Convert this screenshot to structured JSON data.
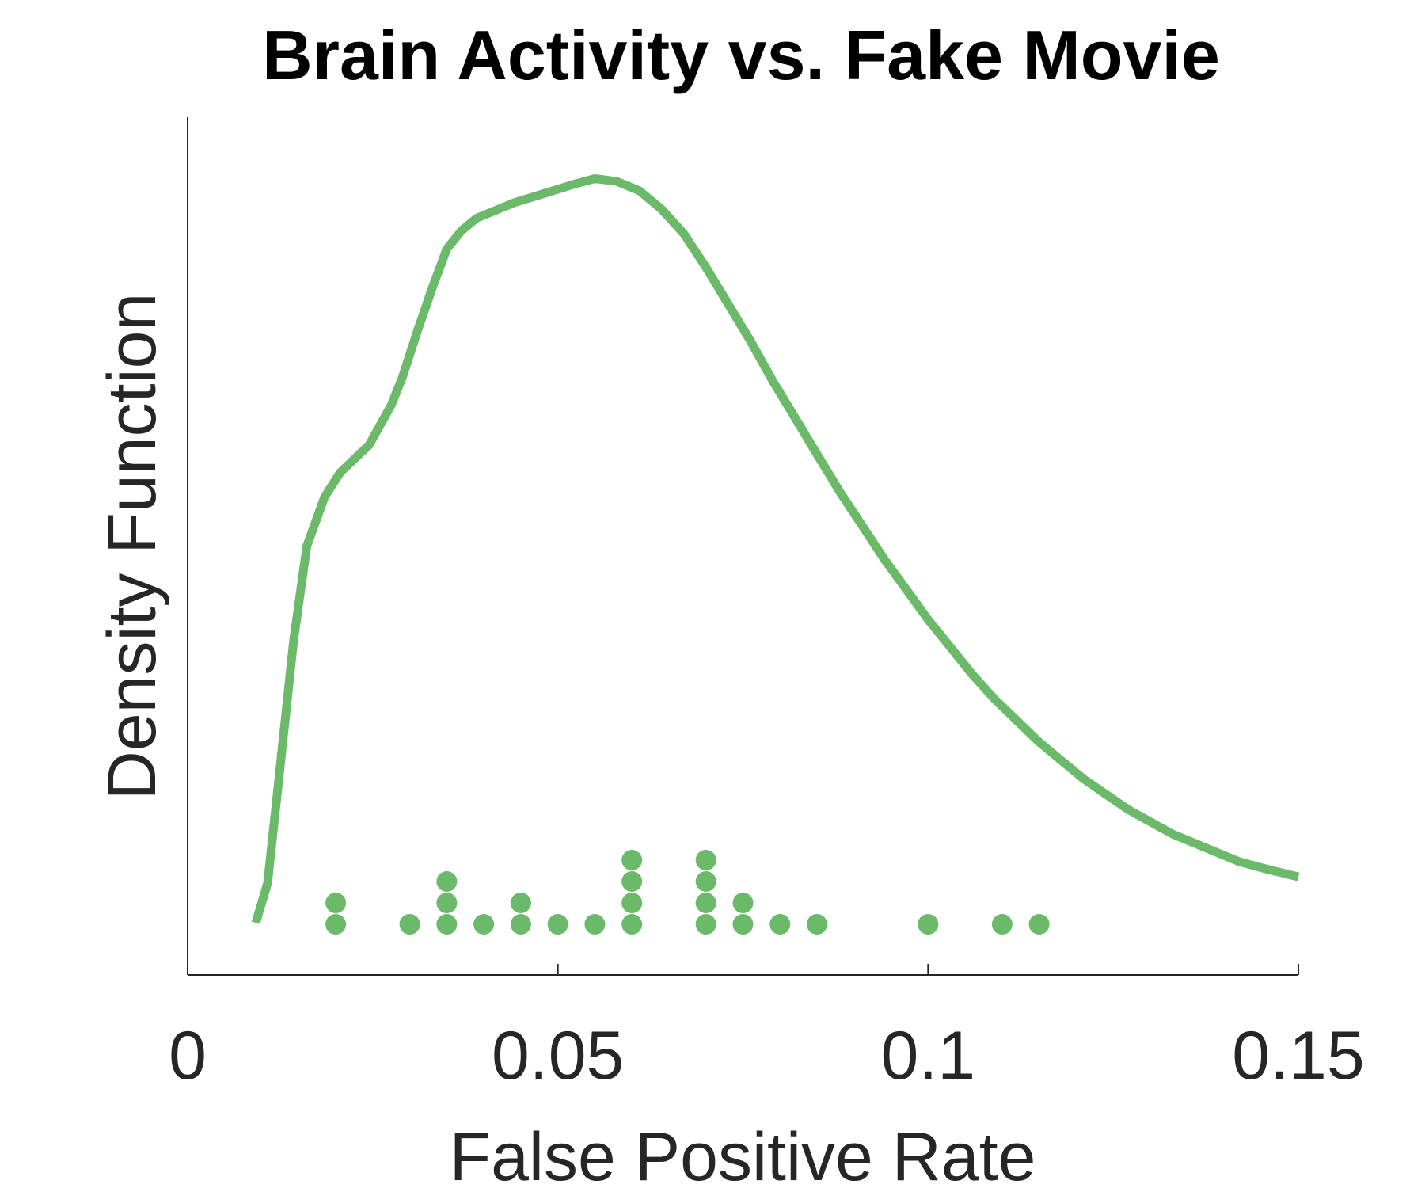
{
  "chart_data": {
    "type": "line",
    "title": "Brain Activity vs. Fake Movie",
    "xlabel": "False Positive Rate",
    "ylabel": "Density Function",
    "xlim": [
      0,
      0.15
    ],
    "ylim": [
      0,
      28
    ],
    "x_ticks": [
      0,
      0.05,
      0.1,
      0.15
    ],
    "x_tick_labels": [
      "0",
      "0.05",
      "0.1",
      "0.15"
    ],
    "y_ticks_visible": false,
    "grid": false,
    "color": "#6aba6a",
    "series": [
      {
        "kind": "density_curve",
        "points": [
          [
            0.0092,
            1.7
          ],
          [
            0.0108,
            3.0
          ],
          [
            0.0125,
            6.8
          ],
          [
            0.0143,
            10.9
          ],
          [
            0.0161,
            14.0
          ],
          [
            0.0185,
            15.6
          ],
          [
            0.0206,
            16.4
          ],
          [
            0.0245,
            17.3
          ],
          [
            0.0275,
            18.6
          ],
          [
            0.029,
            19.5
          ],
          [
            0.031,
            21.0
          ],
          [
            0.033,
            22.4
          ],
          [
            0.035,
            23.7
          ],
          [
            0.037,
            24.3
          ],
          [
            0.039,
            24.7
          ],
          [
            0.041,
            24.9
          ],
          [
            0.044,
            25.2
          ],
          [
            0.048,
            25.5
          ],
          [
            0.052,
            25.8
          ],
          [
            0.055,
            26.0
          ],
          [
            0.058,
            25.9
          ],
          [
            0.061,
            25.6
          ],
          [
            0.064,
            25.0
          ],
          [
            0.067,
            24.2
          ],
          [
            0.07,
            23.1
          ],
          [
            0.073,
            21.9
          ],
          [
            0.076,
            20.7
          ],
          [
            0.079,
            19.4
          ],
          [
            0.082,
            18.2
          ],
          [
            0.085,
            17.0
          ],
          [
            0.088,
            15.8
          ],
          [
            0.091,
            14.7
          ],
          [
            0.094,
            13.6
          ],
          [
            0.097,
            12.6
          ],
          [
            0.1,
            11.6
          ],
          [
            0.103,
            10.7
          ],
          [
            0.106,
            9.8
          ],
          [
            0.109,
            9.0
          ],
          [
            0.112,
            8.3
          ],
          [
            0.115,
            7.6
          ],
          [
            0.118,
            7.0
          ],
          [
            0.121,
            6.4
          ],
          [
            0.124,
            5.9
          ],
          [
            0.127,
            5.4
          ],
          [
            0.13,
            5.0
          ],
          [
            0.133,
            4.6
          ],
          [
            0.136,
            4.3
          ],
          [
            0.139,
            4.0
          ],
          [
            0.142,
            3.7
          ],
          [
            0.145,
            3.5
          ],
          [
            0.15,
            3.2
          ]
        ]
      },
      {
        "kind": "dot_stacks",
        "stacks": [
          {
            "x": 0.02,
            "count": 2
          },
          {
            "x": 0.03,
            "count": 1
          },
          {
            "x": 0.035,
            "count": 3
          },
          {
            "x": 0.04,
            "count": 1
          },
          {
            "x": 0.045,
            "count": 2
          },
          {
            "x": 0.05,
            "count": 1
          },
          {
            "x": 0.055,
            "count": 1
          },
          {
            "x": 0.06,
            "count": 4
          },
          {
            "x": 0.07,
            "count": 4
          },
          {
            "x": 0.075,
            "count": 2
          },
          {
            "x": 0.08,
            "count": 1
          },
          {
            "x": 0.085,
            "count": 1
          },
          {
            "x": 0.1,
            "count": 1
          },
          {
            "x": 0.11,
            "count": 1
          },
          {
            "x": 0.115,
            "count": 1
          }
        ]
      }
    ]
  }
}
